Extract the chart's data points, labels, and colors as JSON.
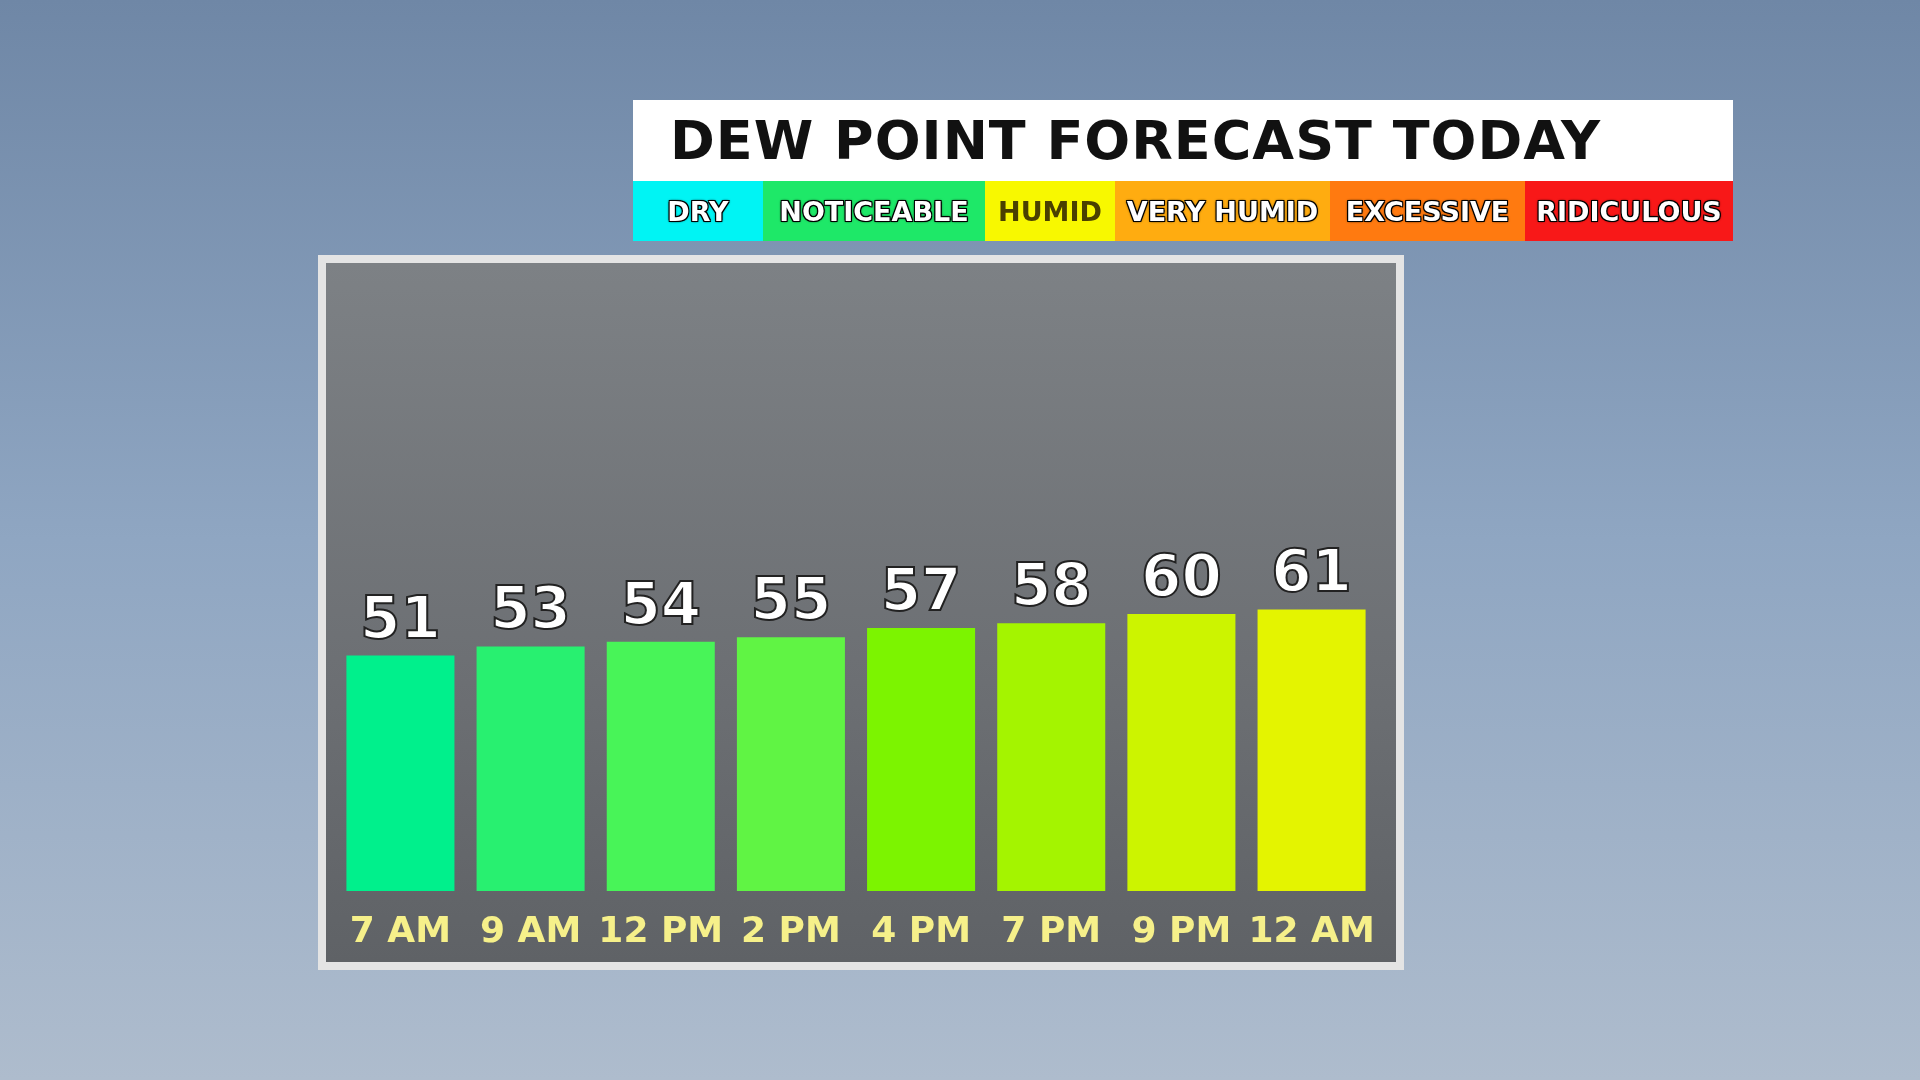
{
  "chart_data": {
    "type": "bar",
    "title": "DEW POINT FORECAST TODAY",
    "annotations": [
      "DRY",
      "NOTICEABLE",
      "HUMID",
      "VERY HUMID",
      "EXCESSIVE",
      "RIDICULOUS"
    ],
    "categories": [
      "7 AM",
      "9 AM",
      "12 PM",
      "2 PM",
      "4 PM",
      "7 PM",
      "9 PM",
      "12 AM"
    ],
    "values": [
      51,
      53,
      54,
      55,
      57,
      58,
      60,
      61
    ],
    "colors": [
      "#00f08c",
      "#28f070",
      "#48f458",
      "#60f444",
      "#7cf400",
      "#a4f400",
      "#ccf400",
      "#e4f400"
    ],
    "data_labels": true
  }
}
